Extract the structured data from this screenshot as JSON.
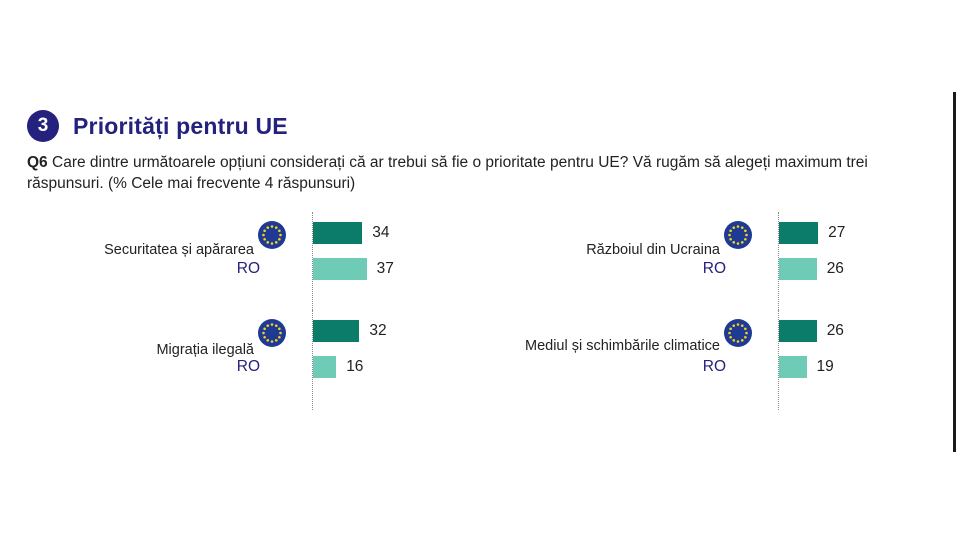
{
  "header": {
    "number": "3",
    "title": "Priorități pentru UE"
  },
  "question": {
    "id": "Q6",
    "text": "Care dintre următoarele opțiuni considerați că ar trebui să fie o prioritate pentru UE? Vă rugăm să alegeți maximum trei răspunsuri. (% Cele mai frecvente 4 răspunsuri)"
  },
  "colors": {
    "eu_bar": "#0b7c6a",
    "ro_bar": "#6ecbb6",
    "title": "#24227c",
    "flag": "#1f3a93",
    "stars": "#f4d21e"
  },
  "icons": {
    "eu": "eu-flag-icon"
  },
  "chart_data": {
    "type": "bar",
    "orientation": "horizontal",
    "series_labels": [
      "",
      "RO"
    ],
    "categories": [
      "Securitatea și apărarea",
      "Migrația ilegală",
      "Războiul din Ucraina",
      "Mediul și schimbările climatice"
    ],
    "series": [
      {
        "values": [
          34,
          32,
          27,
          26
        ]
      },
      {
        "name": "RO",
        "values": [
          37,
          16,
          26,
          19
        ]
      }
    ],
    "xlim": [
      0,
      100
    ]
  }
}
